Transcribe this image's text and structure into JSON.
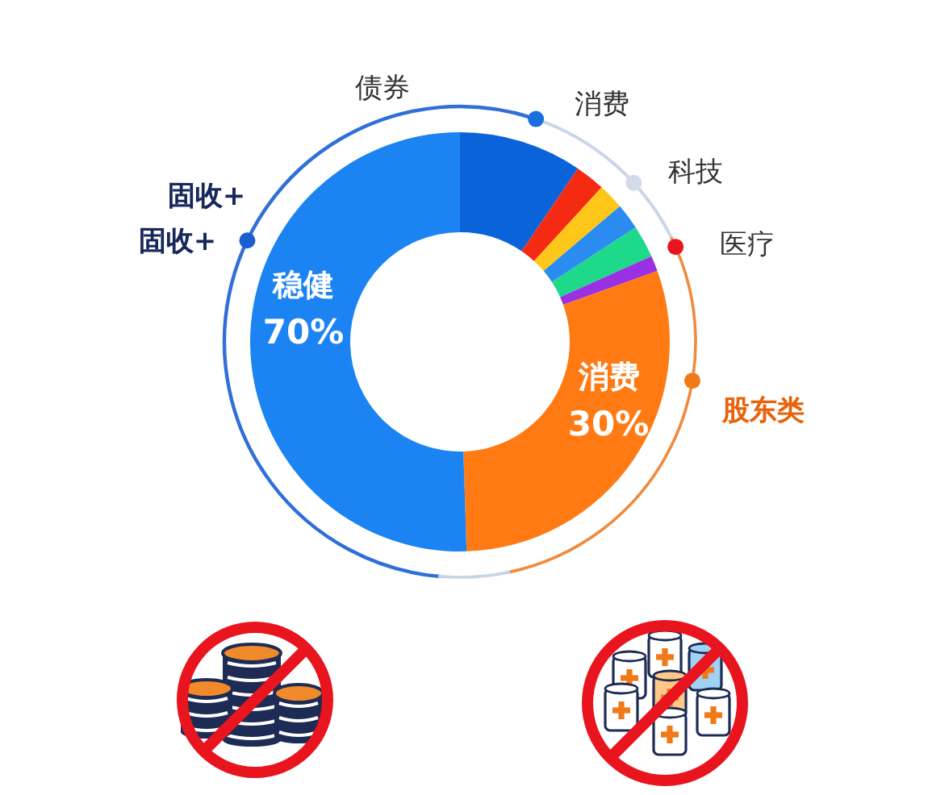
{
  "chart_data": {
    "type": "donut",
    "categories": [
      null,
      null,
      null,
      null,
      null,
      null,
      "消费",
      "稳健"
    ],
    "values": [
      9.5,
      2.3,
      2,
      2,
      2.5,
      1.2,
      30,
      50.5
    ],
    "colors": [
      "#0b63d9",
      "#f52a12",
      "#ffc61a",
      "#2a8cf0",
      "#1fd98a",
      "#9b2fe3",
      "#ff7a12",
      "#1b84f2"
    ],
    "annotations": [
      "债券",
      "消费",
      "科技",
      "固收+",
      "固收+",
      "医疗",
      "70%",
      "股东类",
      "30%"
    ]
  }
}
